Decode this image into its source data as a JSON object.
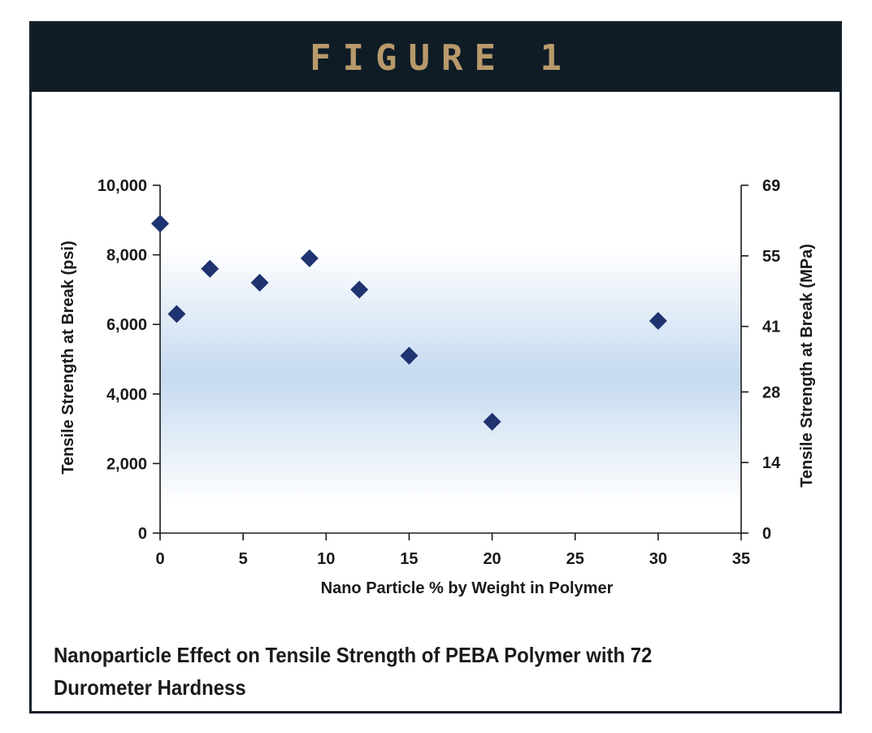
{
  "figure": {
    "label": "FIGURE 1",
    "caption": "Nanoparticle Effect on Tensile Strength of PEBA Polymer with 72 Durometer Hardness"
  },
  "colors": {
    "header_bg": "#0f1c26",
    "header_text": "#b89a6b",
    "marker": "#1f3370",
    "plot_band": "#c6daf0"
  },
  "chart_data": {
    "type": "scatter",
    "title": "",
    "xlabel": "Nano Particle % by Weight in Polymer",
    "ylabel": "Tensile Strength at Break (psi)",
    "y2label": "Tensile Strength at Break (MPa)",
    "xlim": [
      0,
      35
    ],
    "ylim": [
      0,
      10000
    ],
    "x_ticks": [
      0,
      5,
      10,
      15,
      20,
      25,
      30,
      35
    ],
    "x_tick_labels": [
      "0",
      "5",
      "10",
      "15",
      "20",
      "25",
      "30",
      "35"
    ],
    "y_ticks": [
      0,
      2000,
      4000,
      6000,
      8000,
      10000
    ],
    "y_tick_labels": [
      "0",
      "2,000",
      "4,000",
      "6,000",
      "8,000",
      "10,000"
    ],
    "y2_ticks": [
      0,
      14,
      28,
      41,
      55,
      69
    ],
    "y2_tick_labels": [
      "0",
      "14",
      "28",
      "41",
      "55",
      "69"
    ],
    "grid": false,
    "legend": "none",
    "x": [
      0,
      1,
      3,
      6,
      9,
      12,
      15,
      20,
      30
    ],
    "y": [
      8900,
      6300,
      7600,
      7200,
      7900,
      7000,
      5100,
      3200,
      6100
    ]
  }
}
